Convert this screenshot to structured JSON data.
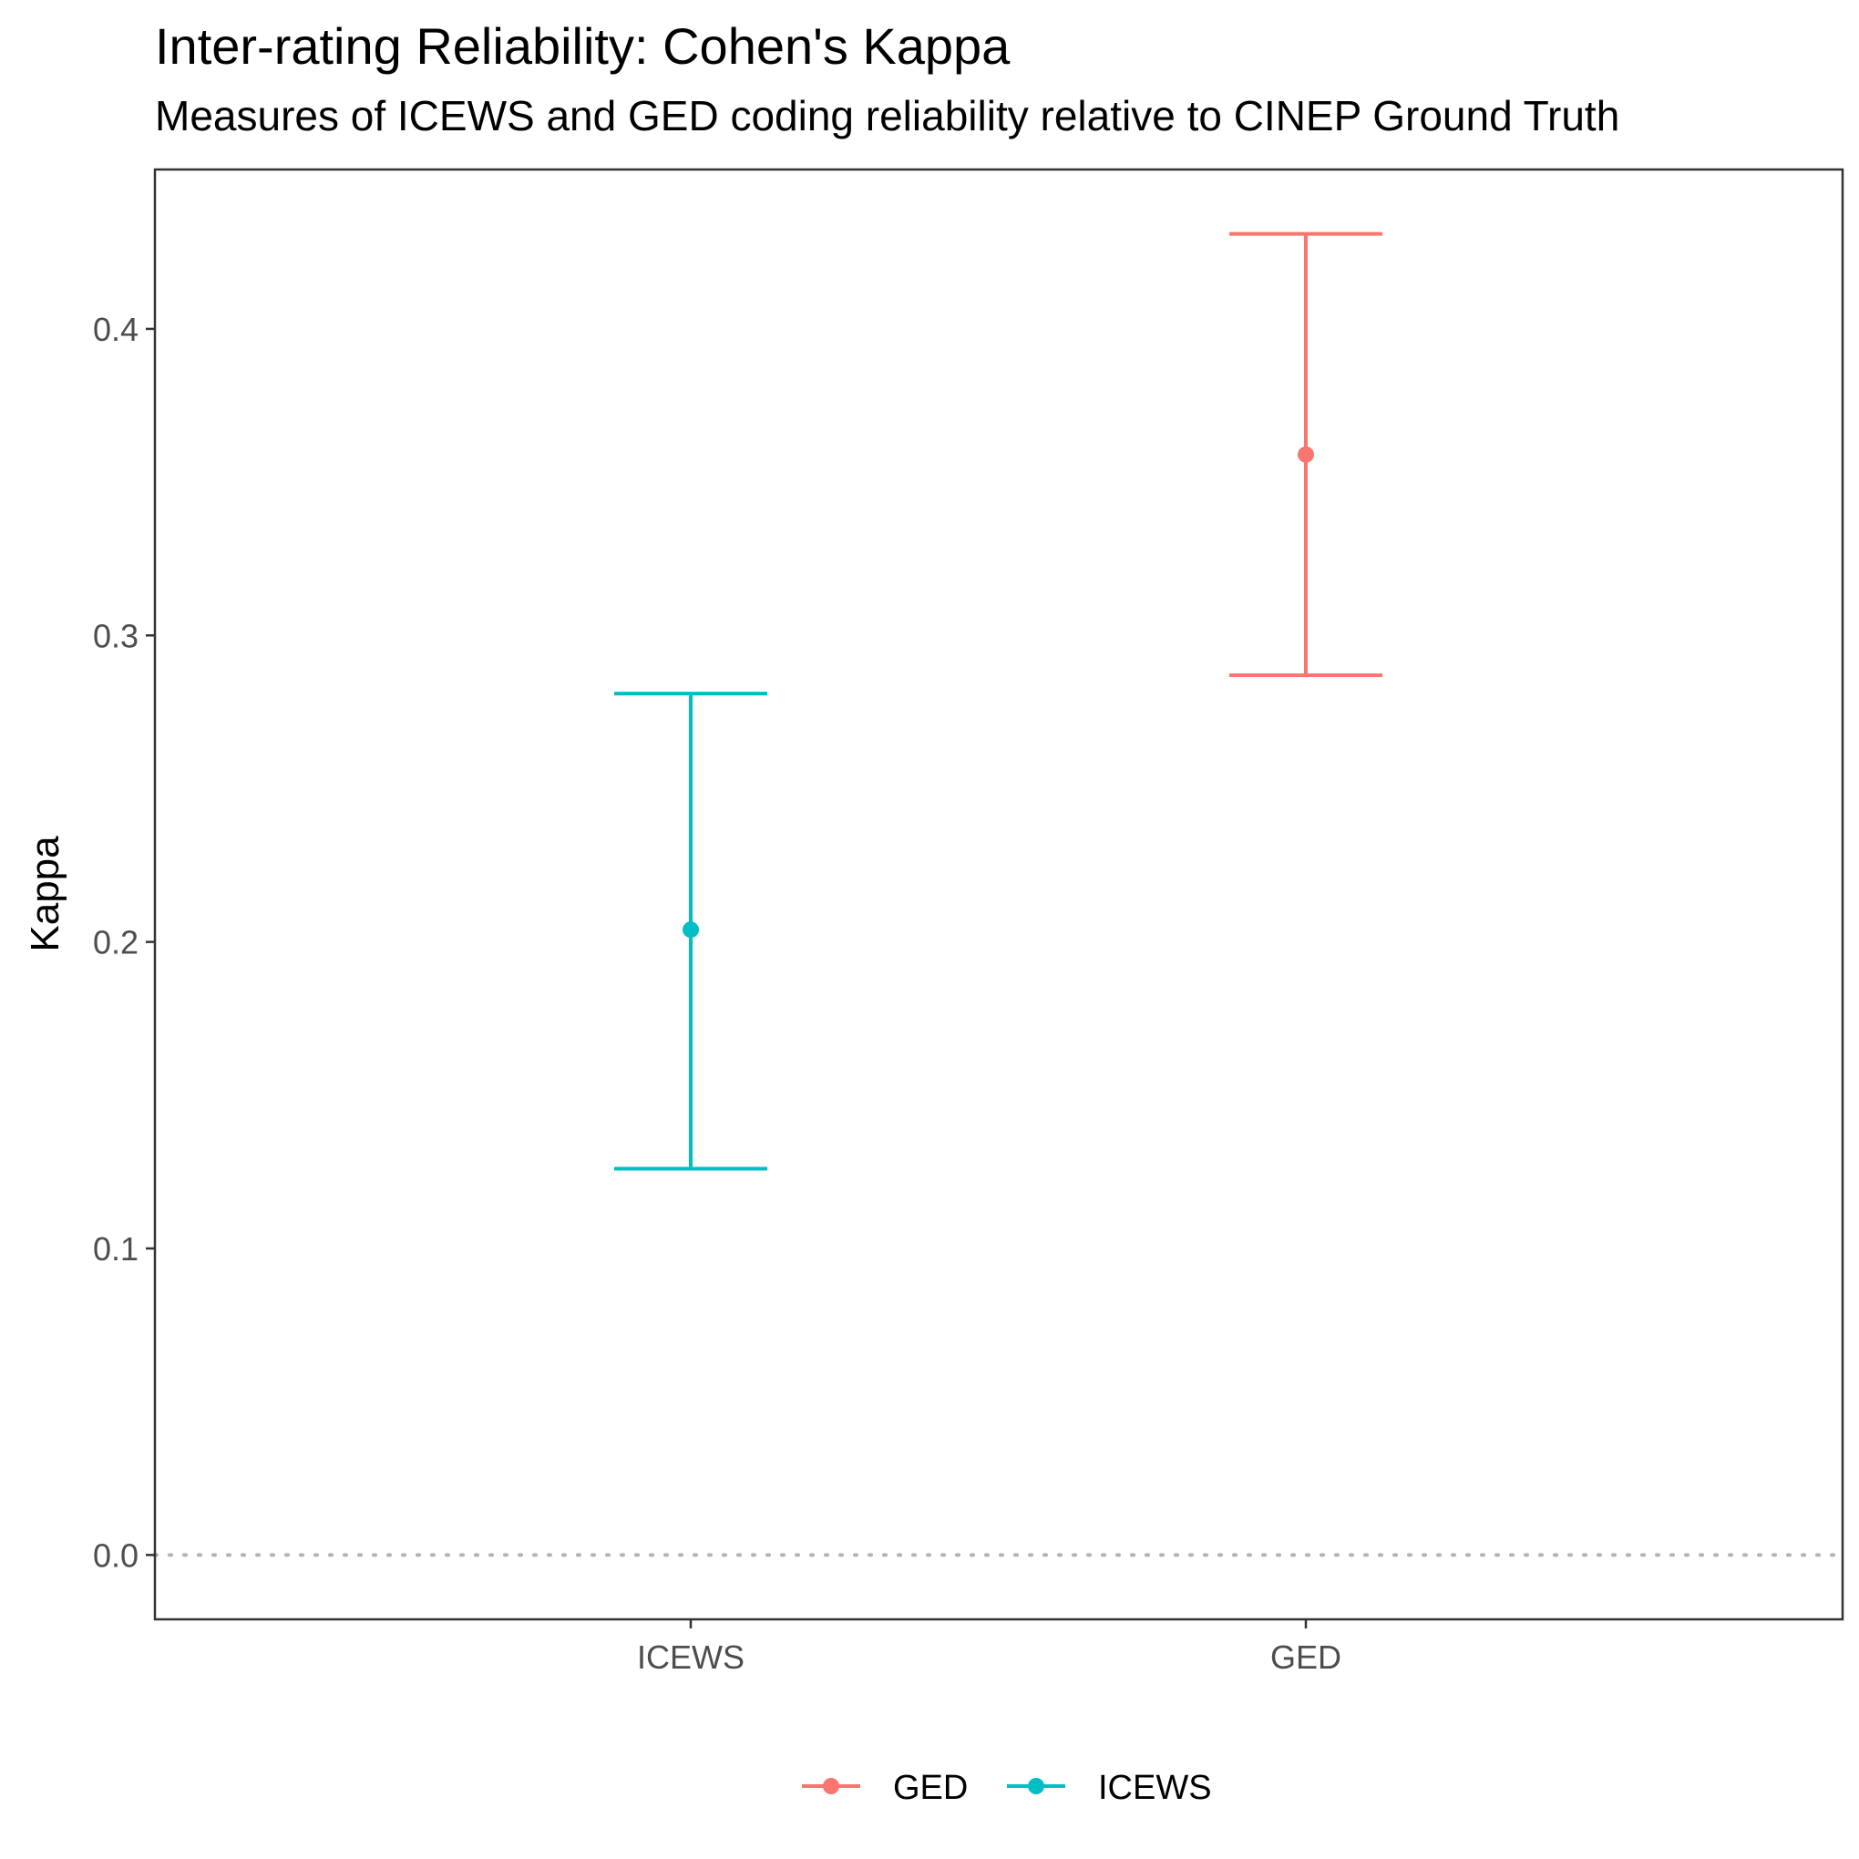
{
  "chart_data": {
    "type": "errorbar",
    "title": "Inter-rating Reliability: Cohen's Kappa",
    "subtitle": "Measures of ICEWS and GED coding reliability relative to CINEP Ground Truth",
    "xlabel": "",
    "ylabel": "Kappa",
    "ylim": [
      -0.021,
      0.452
    ],
    "yticks": [
      0.0,
      0.1,
      0.2,
      0.3,
      0.4
    ],
    "ytick_labels": [
      "0.0",
      "0.1",
      "0.2",
      "0.3",
      "0.4"
    ],
    "categories": [
      "ICEWS",
      "GED"
    ],
    "reference_line": {
      "y": 0.0,
      "style": "dotted"
    },
    "grid": false,
    "legend": {
      "position": "bottom",
      "entries": [
        "GED",
        "ICEWS"
      ]
    },
    "series": [
      {
        "name": "ICEWS",
        "category": "ICEWS",
        "estimate": 0.204,
        "lower": 0.126,
        "upper": 0.281,
        "color": "#00BFC4"
      },
      {
        "name": "GED",
        "category": "GED",
        "estimate": 0.359,
        "lower": 0.287,
        "upper": 0.431,
        "color": "#F8766D"
      }
    ]
  }
}
